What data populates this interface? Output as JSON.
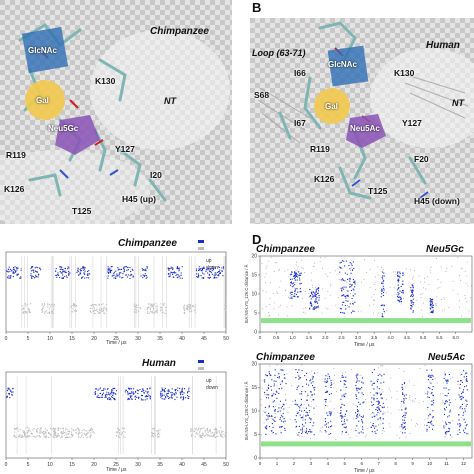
{
  "panel_a": {
    "species": "Chimpanzee",
    "labels": {
      "glcnac": "GlcNAc",
      "gal": "Gal",
      "neu": "Neu5Gc",
      "k130": "K130",
      "nt": "NT",
      "y127": "Y127",
      "r119": "R119",
      "i20": "I20",
      "k126": "K126",
      "h45": "H45 (up)",
      "t125": "T125"
    }
  },
  "panel_b": {
    "letter": "B",
    "species": "Human",
    "labels": {
      "loop": "Loop (63-71)",
      "glcnac": "GlcNAc",
      "i66": "I66",
      "k130": "K130",
      "s68": "S68",
      "gal": "Gal",
      "nt": "NT",
      "i67": "I67",
      "neu": "Neu5Ac",
      "y127": "Y127",
      "r119": "R119",
      "f20": "F20",
      "k126": "K126",
      "t125": "T125",
      "h45": "H45 (down)"
    }
  },
  "panel_d": {
    "letter": "D"
  },
  "chart_data": [
    {
      "type": "scatter",
      "panel": "C-top",
      "title": "Chimpanzee",
      "legend": [
        "up",
        "down"
      ],
      "legend_position": "top-right",
      "xlabel": "Time / μs",
      "xticks": [
        "0",
        "5",
        "10",
        "15",
        "20",
        "25",
        "30",
        "35",
        "40",
        "45",
        "50"
      ],
      "series": [
        {
          "name": "up",
          "color": "#1a2bd6",
          "level": 0.75,
          "segments": [
            [
              0.0,
              3.5
            ],
            [
              5.5,
              8.0
            ],
            [
              11.0,
              14.5
            ],
            [
              16.0,
              19.0
            ],
            [
              23.0,
              29.0
            ],
            [
              30.5,
              32.0
            ],
            [
              36.5,
              40.0
            ],
            [
              43.0,
              49.5
            ]
          ]
        },
        {
          "name": "down",
          "color": "#bdbdbd",
          "level": 0.3,
          "segments": [
            [
              3.5,
              5.5
            ],
            [
              8.0,
              11.0
            ],
            [
              14.5,
              16.0
            ],
            [
              19.0,
              23.0
            ],
            [
              29.0,
              30.5
            ],
            [
              32.0,
              36.5
            ],
            [
              40.0,
              43.0
            ],
            [
              49.5,
              50.0
            ]
          ]
        }
      ]
    },
    {
      "type": "scatter",
      "panel": "C-bottom",
      "title": "Human",
      "legend": [
        "up",
        "down"
      ],
      "legend_position": "top-right",
      "xlabel": "Time / μs",
      "xticks": [
        "0",
        "5",
        "10",
        "15",
        "20",
        "25",
        "30",
        "35",
        "40",
        "45",
        "50"
      ],
      "series": [
        {
          "name": "up",
          "color": "#1a2bd6",
          "level": 0.75,
          "segments": [
            [
              0.0,
              1.5
            ],
            [
              20.0,
              25.0
            ],
            [
              27.0,
              33.0
            ],
            [
              35.0,
              41.5
            ]
          ]
        },
        {
          "name": "down",
          "color": "#bdbdbd",
          "level": 0.3,
          "segments": [
            [
              1.5,
              20.0
            ],
            [
              25.0,
              27.0
            ],
            [
              33.0,
              35.0
            ],
            [
              41.5,
              50.0
            ]
          ]
        }
      ]
    },
    {
      "type": "scatter",
      "panel": "D-top",
      "title": "Chimpanzee",
      "subtitle": "Neu5Gc",
      "ylabel": "SIA:N5-LYS_126:C distance / Å",
      "xlabel": "Time / μs",
      "ylim": [
        0,
        20
      ],
      "yticks": [
        "0",
        "5",
        "10",
        "15",
        "20"
      ],
      "xticks": [
        "0",
        "0.5",
        "1.0",
        "1.5",
        "2.0",
        "2.5",
        "3.0",
        "3.5",
        "4.0",
        "4.5",
        "5.0",
        "5.5",
        "6.0"
      ],
      "xlim": [
        0,
        6.5
      ],
      "bound_level": 3,
      "blue_bursts": [
        [
          0.9,
          1.25,
          9,
          16
        ],
        [
          1.5,
          1.8,
          6,
          12
        ],
        [
          2.4,
          2.9,
          5,
          19
        ],
        [
          3.7,
          3.8,
          4,
          16
        ],
        [
          4.2,
          4.4,
          8,
          16
        ],
        [
          4.6,
          4.7,
          5,
          13
        ],
        [
          5.2,
          5.3,
          5,
          9
        ]
      ]
    },
    {
      "type": "scatter",
      "panel": "D-bottom",
      "title": "Chimpanzee",
      "subtitle": "Neu5Ac",
      "ylabel": "SIA:N5-LYS_126:C distance / Å",
      "xlabel": "Time / μs",
      "ylim": [
        0,
        20
      ],
      "yticks": [
        "0",
        "5",
        "10",
        "15",
        "20"
      ],
      "xticks": [
        "0",
        "1",
        "2",
        "3",
        "4",
        "5",
        "6",
        "7",
        "8",
        "9",
        "10",
        "11",
        "12"
      ],
      "xlim": [
        0,
        12.5
      ],
      "bound_level": 3,
      "blue_bursts": [
        [
          0.2,
          1.5,
          5,
          19
        ],
        [
          2.0,
          3.2,
          5,
          19
        ],
        [
          3.8,
          4.2,
          5,
          18
        ],
        [
          4.7,
          5.1,
          5,
          18
        ],
        [
          5.6,
          6.1,
          5,
          18
        ],
        [
          6.5,
          7.3,
          5,
          19
        ],
        [
          8.3,
          8.6,
          5,
          17
        ],
        [
          9.8,
          10.2,
          5,
          19
        ],
        [
          10.8,
          11.2,
          5,
          18
        ],
        [
          11.6,
          12.2,
          5,
          19
        ]
      ]
    }
  ]
}
